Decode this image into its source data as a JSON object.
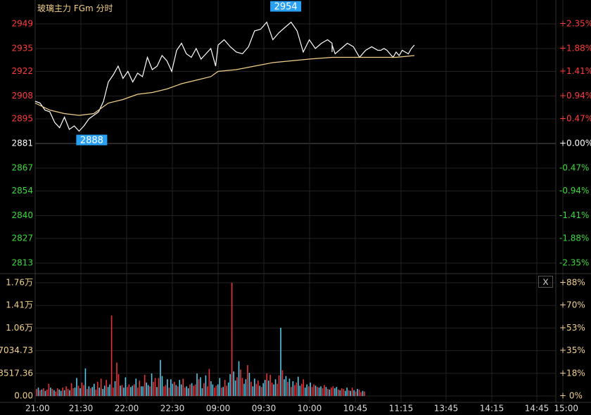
{
  "header": {
    "title": "玻璃主力 FGm 分时"
  },
  "controls": {
    "close_label": "X"
  },
  "colors": {
    "up": "#ff3b3b",
    "down": "#3cd93c",
    "flat": "#ffffff",
    "price_line": "#ffffff",
    "avg_line": "#f3d08a",
    "volume_up": "#e8333a",
    "volume_down": "#55c8e8",
    "volume_axis": "#f3d08a",
    "grid": "#222222",
    "highlight_box": "#2aa0f5"
  },
  "chart_data": {
    "type": "line",
    "title": "玻璃主力 FGm 分时",
    "x_ticks": [
      "21:00",
      "21:30",
      "22:00",
      "22:30",
      "09:00",
      "09:30",
      "10:00",
      "10:45",
      "11:15",
      "13:45",
      "14:15",
      "14:45",
      "15:00"
    ],
    "prev_close": 2881,
    "price_axis": {
      "ticks": [
        2949,
        2935,
        2922,
        2908,
        2895,
        2881,
        2867,
        2854,
        2840,
        2827,
        2813
      ],
      "ylim": [
        2813,
        2949
      ],
      "pct_ticks": [
        "+2.35%",
        "+1.88%",
        "+1.41%",
        "+0.94%",
        "+0.47%",
        "+0.00%",
        "-0.47%",
        "-0.94%",
        "-1.41%",
        "-1.88%",
        "-2.35%"
      ]
    },
    "high_label": "2954",
    "low_label": "2888",
    "series": [
      {
        "name": "price",
        "points": [
          [
            "21:00",
            2905
          ],
          [
            "21:04",
            2904
          ],
          [
            "21:08",
            2900
          ],
          [
            "21:12",
            2899
          ],
          [
            "21:16",
            2893
          ],
          [
            "21:20",
            2890
          ],
          [
            "21:24",
            2896
          ],
          [
            "21:28",
            2889
          ],
          [
            "21:32",
            2891
          ],
          [
            "21:36",
            2888
          ],
          [
            "21:40",
            2891
          ],
          [
            "21:44",
            2895
          ],
          [
            "21:48",
            2897
          ],
          [
            "21:52",
            2899
          ],
          [
            "21:56",
            2905
          ],
          [
            "22:00",
            2916
          ],
          [
            "22:04",
            2920
          ],
          [
            "22:08",
            2925
          ],
          [
            "22:12",
            2918
          ],
          [
            "22:16",
            2922
          ],
          [
            "22:20",
            2916
          ],
          [
            "22:24",
            2921
          ],
          [
            "22:28",
            2919
          ],
          [
            "22:32",
            2930
          ],
          [
            "22:36",
            2923
          ],
          [
            "22:40",
            2925
          ],
          [
            "22:44",
            2931
          ],
          [
            "22:48",
            2928
          ],
          [
            "22:52",
            2922
          ],
          [
            "22:56",
            2934
          ],
          [
            "23:00",
            2938
          ],
          [
            "23:04",
            2932
          ],
          [
            "23:08",
            2930
          ],
          [
            "23:12",
            2935
          ],
          [
            "23:16",
            2929
          ],
          [
            "23:20",
            2932
          ],
          [
            "23:24",
            2935
          ],
          [
            "23:28",
            2925
          ],
          [
            "09:00",
            2937
          ],
          [
            "09:04",
            2940
          ],
          [
            "09:08",
            2936
          ],
          [
            "09:12",
            2933
          ],
          [
            "09:16",
            2932
          ],
          [
            "09:20",
            2936
          ],
          [
            "09:24",
            2945
          ],
          [
            "09:28",
            2946
          ],
          [
            "09:32",
            2950
          ],
          [
            "09:36",
            2940
          ],
          [
            "09:40",
            2944
          ],
          [
            "09:44",
            2947
          ],
          [
            "09:48",
            2950
          ],
          [
            "09:52",
            2945
          ],
          [
            "09:56",
            2933
          ],
          [
            "10:00",
            2940
          ],
          [
            "10:04",
            2935
          ],
          [
            "10:08",
            2938
          ],
          [
            "10:12",
            2940
          ],
          [
            "10:16",
            2938
          ],
          [
            "10:20",
            2935
          ],
          [
            "10:24",
            2933
          ],
          [
            "10:28",
            2937
          ],
          [
            "10:32",
            2932
          ],
          [
            "10:36",
            2935
          ],
          [
            "10:40",
            2938
          ],
          [
            "10:44",
            2936
          ],
          [
            "10:48",
            2930
          ],
          [
            "10:52",
            2934
          ],
          [
            "10:56",
            2936
          ],
          [
            "11:00",
            2934
          ],
          [
            "11:02",
            2934
          ],
          [
            "11:04",
            2935
          ],
          [
            "11:06",
            2934
          ],
          [
            "11:08",
            2932
          ],
          [
            "11:10",
            2930
          ],
          [
            "11:12",
            2933
          ],
          [
            "11:14",
            2931
          ],
          [
            "11:16",
            2934
          ],
          [
            "11:18",
            2933
          ],
          [
            "11:20",
            2932
          ],
          [
            "11:22",
            2935
          ],
          [
            "11:24",
            2937
          ]
        ]
      },
      {
        "name": "average",
        "points": [
          [
            "21:00",
            2904
          ],
          [
            "21:12",
            2900
          ],
          [
            "21:24",
            2898
          ],
          [
            "21:36",
            2897
          ],
          [
            "21:48",
            2898
          ],
          [
            "22:00",
            2904
          ],
          [
            "22:12",
            2906
          ],
          [
            "22:24",
            2909
          ],
          [
            "22:36",
            2910
          ],
          [
            "22:48",
            2912
          ],
          [
            "23:00",
            2915
          ],
          [
            "23:12",
            2917
          ],
          [
            "23:24",
            2919
          ],
          [
            "09:00",
            2922
          ],
          [
            "09:12",
            2923
          ],
          [
            "09:24",
            2925
          ],
          [
            "09:36",
            2927
          ],
          [
            "09:48",
            2928
          ],
          [
            "10:00",
            2929
          ],
          [
            "10:24",
            2930
          ],
          [
            "10:48",
            2930
          ],
          [
            "11:12",
            2930
          ],
          [
            "11:24",
            2931
          ]
        ]
      }
    ],
    "volume": {
      "ticks": [
        "1.76万",
        "1.41万",
        "1.06万",
        "7034.73",
        "3517.36",
        "0.00"
      ],
      "ylim": [
        0,
        17587
      ],
      "pct_ticks": [
        "+88%",
        "+70%",
        "+53%",
        "+35%",
        "+18%",
        "+ 0%"
      ],
      "values": [
        1100,
        1300,
        900,
        1000,
        1200,
        800,
        1000,
        1900,
        1300,
        1100,
        900,
        700,
        1200,
        1000,
        800,
        1300,
        900,
        1500,
        1100,
        900,
        2000,
        1200,
        1300,
        2800,
        1600,
        1200,
        2100,
        1700,
        4300,
        1100,
        1500,
        1200,
        1400,
        1900,
        1000,
        2200,
        1300,
        2700,
        1100,
        1600,
        2500,
        1400,
        1800,
        12500,
        1300,
        2300,
        5200,
        3400,
        1600,
        1700,
        1300,
        2900,
        1400,
        1800,
        1400,
        1600,
        1800,
        2700,
        1300,
        2400,
        1500,
        1500,
        3300,
        2100,
        1700,
        1500,
        3500,
        2200,
        2800,
        1400,
        2800,
        5600,
        3100,
        1500,
        1700,
        2600,
        1300,
        2600,
        1900,
        2200,
        1700,
        1500,
        2500,
        1800,
        2700,
        1300,
        1500,
        1200,
        1800,
        2000,
        1600,
        1800,
        3500,
        2600,
        2900,
        1200,
        2000,
        3200,
        1500,
        4200,
        2300,
        1800,
        1300,
        1600,
        1800,
        2800,
        1300,
        1400,
        2500,
        1600,
        2100,
        3400,
        17587,
        3800,
        2400,
        2900,
        5400,
        4100,
        2800,
        1900,
        2600,
        4800,
        3600,
        2200,
        1500,
        2700,
        1900,
        2400,
        1600,
        1400,
        2000,
        2500,
        3500,
        2400,
        3300,
        2100,
        1800,
        2600,
        1900,
        3200,
        10600,
        4000,
        2600,
        3100,
        2200,
        2700,
        1400,
        2300,
        1700,
        2100,
        3000,
        1600,
        1900,
        2600,
        1300,
        1800,
        1500,
        2100,
        1400,
        1800,
        1600,
        1400,
        1300,
        1500,
        1200,
        1700,
        1400,
        1100,
        1000,
        1300,
        1500,
        1200,
        1400,
        1000,
        900,
        1200,
        1100,
        800,
        1300,
        900,
        800,
        1300,
        900,
        700,
        1100,
        1000,
        600,
        800,
        700
      ],
      "directions": "udududuududuudduduuduudduduudududduududdudduuduududduudduduuddudduduududduududdududduudduduududduduudduudduduuddudduduuddududduududduduudduududdududuudduudduduududduududuudduduudd"
    }
  }
}
